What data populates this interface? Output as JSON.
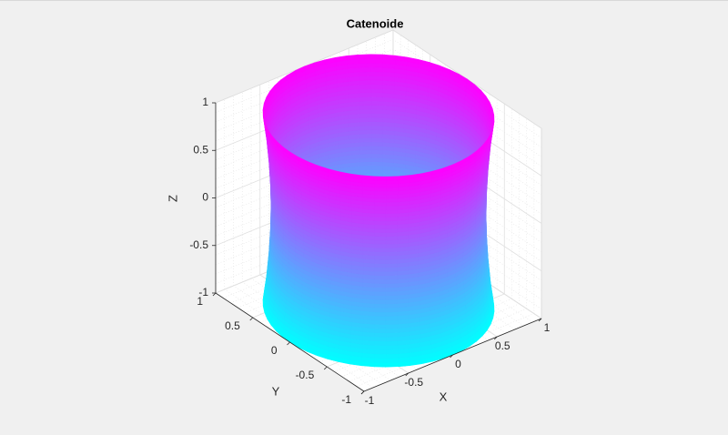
{
  "chart_data": {
    "type": "surface",
    "title": "Catenoide",
    "xlabel": "X",
    "ylabel": "Y",
    "zlabel": "Z",
    "xlim": [
      -1,
      1
    ],
    "ylim": [
      -1,
      1
    ],
    "zlim": [
      -1,
      1
    ],
    "xticks": [
      -1,
      -0.5,
      0,
      0.5,
      1
    ],
    "yticks": [
      -1,
      -0.5,
      0,
      0.5,
      1
    ],
    "zticks": [
      -1,
      -0.5,
      0,
      0.5,
      1
    ],
    "grid": true,
    "minor_grid": true,
    "colormap": "cool",
    "surface": {
      "z": [
        -1,
        -0.75,
        -0.5,
        -0.25,
        0,
        0.25,
        0.5,
        0.75,
        1
      ],
      "radius": [
        1,
        0.969,
        0.948,
        0.935,
        0.93,
        0.935,
        0.948,
        0.969,
        1
      ]
    }
  }
}
